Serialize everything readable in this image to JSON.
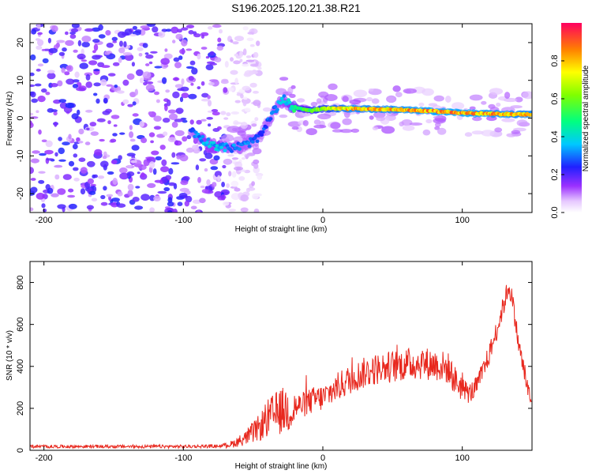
{
  "title": "S196.2025.120.21.38.R21",
  "chart_data": [
    {
      "type": "heatmap",
      "xlabel": "Height of straight line (km)",
      "ylabel": "Frequency (Hz)",
      "xlim": [
        -210,
        150
      ],
      "ylim": [
        -25,
        25
      ],
      "xticks": [
        -200,
        -100,
        0,
        100
      ],
      "xtick_labels": [
        "-200",
        "-100",
        "0",
        "100"
      ],
      "yticks": [
        -20,
        -10,
        0,
        10,
        20
      ],
      "ytick_labels": [
        "-20",
        "-10",
        "0",
        "10",
        "20"
      ],
      "colorbar": {
        "label": "Normalized spectral amplitude",
        "range": [
          0,
          1
        ],
        "ticks": [
          0.0,
          0.2,
          0.4,
          0.6,
          0.8
        ],
        "tick_labels": [
          "0.0",
          "0.2",
          "0.4",
          "0.6",
          "0.8"
        ]
      },
      "ridge": {
        "x": [
          -95,
          -85,
          -75,
          -65,
          -55,
          -45,
          -35,
          -28,
          -22,
          -15,
          -8,
          0,
          20,
          50,
          80,
          110,
          140,
          150
        ],
        "freq": [
          -3,
          -6,
          -7.5,
          -8,
          -7,
          -5,
          2,
          5,
          3,
          2.5,
          2,
          2.5,
          2.5,
          2.3,
          1.8,
          1.2,
          1,
          1
        ],
        "amplitude": [
          0.3,
          0.4,
          0.4,
          0.35,
          0.35,
          0.3,
          0.35,
          0.4,
          0.5,
          0.6,
          0.65,
          0.7,
          0.9,
          0.9,
          0.95,
          0.95,
          0.9,
          0.9
        ]
      },
      "noise_region": {
        "x_from": -210,
        "x_to": -70,
        "freq_range": [
          -25,
          25
        ],
        "amplitude": [
          0.05,
          0.25
        ]
      }
    },
    {
      "type": "line",
      "xlabel": "Height of straight line (km)",
      "ylabel": "SNR (10 * v/v)",
      "xlim": [
        -210,
        150
      ],
      "ylim": [
        0,
        900
      ],
      "xticks": [
        -200,
        -100,
        0,
        100
      ],
      "xtick_labels": [
        "-200",
        "-100",
        "0",
        "100"
      ],
      "yticks": [
        0,
        200,
        400,
        600,
        800
      ],
      "ytick_labels": [
        "0",
        "200",
        "400",
        "600",
        "800"
      ],
      "color": "#e8281e",
      "envelope": {
        "x": [
          -210,
          -150,
          -100,
          -75,
          -65,
          -55,
          -45,
          -40,
          -35,
          -30,
          -25,
          -20,
          -15,
          -10,
          -5,
          0,
          10,
          20,
          30,
          40,
          50,
          60,
          70,
          80,
          85,
          90,
          95,
          100,
          105,
          110,
          115,
          120,
          125,
          130,
          133,
          135,
          138,
          140,
          143,
          146,
          148,
          150
        ],
        "y": [
          18,
          18,
          18,
          20,
          30,
          60,
          110,
          150,
          170,
          185,
          200,
          205,
          215,
          230,
          245,
          250,
          300,
          340,
          370,
          390,
          400,
          410,
          415,
          410,
          400,
          390,
          330,
          300,
          270,
          300,
          380,
          470,
          580,
          700,
          780,
          750,
          620,
          520,
          420,
          320,
          260,
          210
        ]
      }
    }
  ]
}
